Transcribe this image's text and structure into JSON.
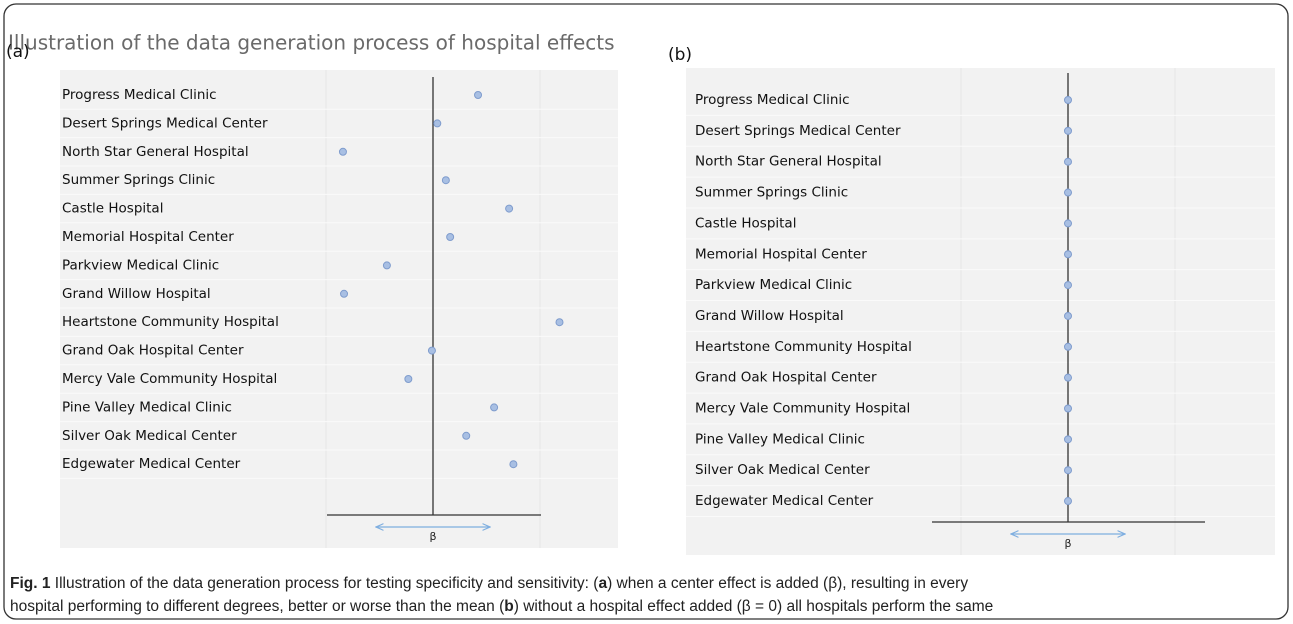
{
  "title": "Illustration of the data generation process of hospital effects",
  "chart_data": [
    {
      "type": "scatter",
      "panel_label": "(a)",
      "categories": [
        "Progress Medical Clinic",
        "Desert Springs Medical Center",
        "North Star General Hospital",
        "Summer Springs Clinic",
        "Castle Hospital",
        "Memorial Hospital Center",
        "Parkview Medical Clinic",
        "Grand Willow Hospital",
        "Heartstone Community Hospital",
        "Grand Oak Hospital Center",
        "Mercy Vale Community Hospital",
        "Pine Valley Medical Clinic",
        "Silver Oak Medical Center",
        "Edgewater Medical Center"
      ],
      "values": [
        0.42,
        0.04,
        -0.84,
        0.12,
        0.71,
        0.16,
        -0.43,
        -0.83,
        1.18,
        -0.01,
        -0.23,
        0.57,
        0.31,
        0.75
      ],
      "xlim": [
        -1.25,
        1.25
      ],
      "axis_label": "β",
      "color": "#a8bfe3"
    },
    {
      "type": "scatter",
      "panel_label": "(b)",
      "categories": [
        "Progress Medical Clinic",
        "Desert Springs Medical Center",
        "North Star General Hospital",
        "Summer Springs Clinic",
        "Castle Hospital",
        "Memorial Hospital Center",
        "Parkview Medical Clinic",
        "Grand Willow Hospital",
        "Heartstone Community Hospital",
        "Grand Oak Hospital Center",
        "Mercy Vale Community Hospital",
        "Pine Valley Medical Clinic",
        "Silver Oak Medical Center",
        "Edgewater Medical Center"
      ],
      "values": [
        0,
        0,
        0,
        0,
        0,
        0,
        0,
        0,
        0,
        0,
        0,
        0,
        0,
        0
      ],
      "xlim": [
        -1.25,
        1.25
      ],
      "axis_label": "β",
      "color": "#a8bfe3"
    }
  ],
  "caption": {
    "parts": [
      "Fig. 1",
      " Illustration of the data generation process for testing specificity and sensitivity: (",
      "a",
      ") when a center effect is added (β), resulting in every",
      "hospital performing to different degrees, better or worse than the mean (",
      "b",
      ") without a hospital effect added (β = 0) all hospitals perform the same"
    ]
  }
}
